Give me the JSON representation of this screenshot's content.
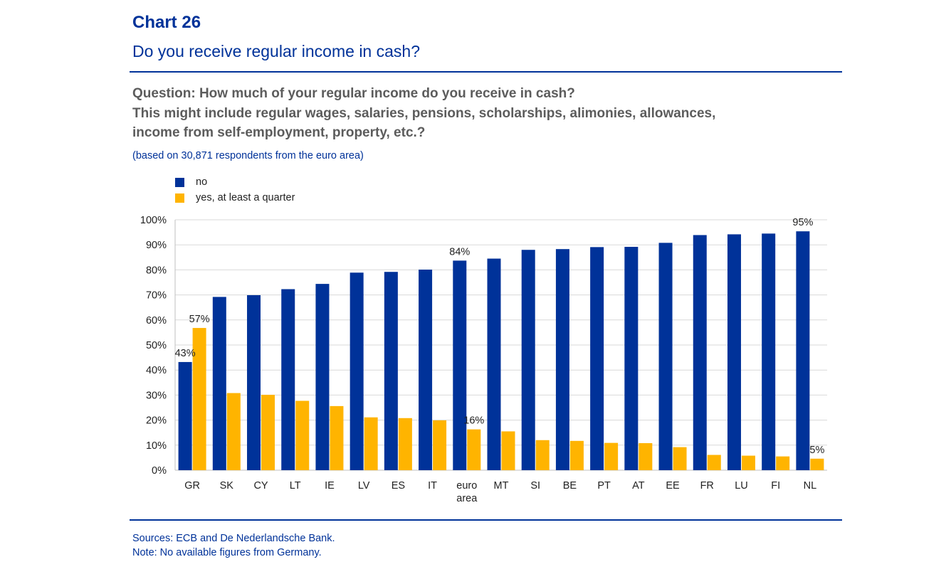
{
  "header": {
    "label": "Chart 26",
    "title": "Do you receive regular income in cash?"
  },
  "question": {
    "lines": [
      "Question: How much of your regular income do you receive in cash?",
      "This might include regular wages, salaries, pensions, scholarships, alimonies, allowances,",
      "income from self-employment, property, etc.?"
    ]
  },
  "basis": "(based on 30,871 respondents from the euro area)",
  "colors": {
    "accent": "#003299",
    "no": "#003299",
    "yes": "#ffb400",
    "grid": "#d9d9d9"
  },
  "chart_data": {
    "type": "bar",
    "categories": [
      "GR",
      "SK",
      "CY",
      "LT",
      "IE",
      "LV",
      "ES",
      "IT",
      "euro area",
      "MT",
      "SI",
      "BE",
      "PT",
      "AT",
      "EE",
      "FR",
      "LU",
      "FI",
      "NL"
    ],
    "series": [
      {
        "name": "no",
        "color": "#003299",
        "values": [
          43.2,
          69.2,
          69.9,
          72.3,
          74.4,
          78.9,
          79.2,
          80.1,
          83.7,
          84.5,
          88.0,
          88.3,
          89.1,
          89.2,
          90.8,
          93.9,
          94.2,
          94.5,
          95.4
        ]
      },
      {
        "name": "yes, at least a quarter",
        "color": "#ffb400",
        "values": [
          56.8,
          30.8,
          30.1,
          27.7,
          25.6,
          21.1,
          20.8,
          19.9,
          16.3,
          15.5,
          12.0,
          11.7,
          10.9,
          10.8,
          9.2,
          6.1,
          5.8,
          5.5,
          4.6
        ]
      }
    ],
    "data_labels": [
      {
        "series": 0,
        "category": "GR",
        "text": "43%"
      },
      {
        "series": 1,
        "category": "GR",
        "text": "57%"
      },
      {
        "series": 0,
        "category": "euro area",
        "text": "84%"
      },
      {
        "series": 1,
        "category": "euro area",
        "text": "16%"
      },
      {
        "series": 0,
        "category": "NL",
        "text": "95%"
      },
      {
        "series": 1,
        "category": "NL",
        "text": "5%"
      }
    ],
    "yticks": [
      "0%",
      "10%",
      "20%",
      "30%",
      "40%",
      "50%",
      "60%",
      "70%",
      "80%",
      "90%",
      "100%"
    ],
    "ylim": [
      0,
      100
    ],
    "grid": true,
    "legend": "top-left"
  },
  "footer": {
    "sources": "Sources: ECB and De Nederlandsche Bank.",
    "note": "Note: No available figures from Germany."
  }
}
